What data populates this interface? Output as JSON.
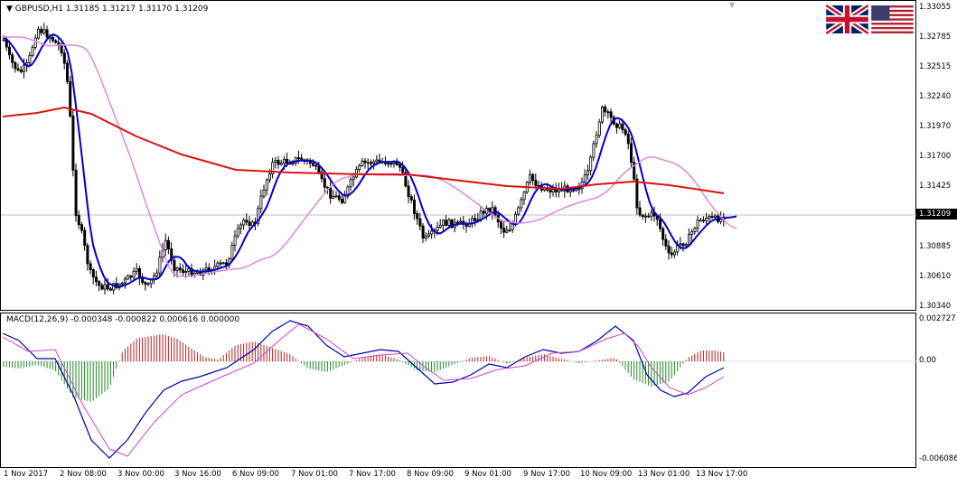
{
  "chart_title": "GBPUSD,H1",
  "ohlc": {
    "open": "1.31185",
    "high": "1.31217",
    "low": "1.31170",
    "close": "1.31209"
  },
  "current_price": "1.31209",
  "price_axis": [
    "1.33055",
    "1.32785",
    "1.32515",
    "1.32240",
    "1.31970",
    "1.31700",
    "1.31425",
    "1.31155",
    "1.30885",
    "1.30610",
    "1.30340"
  ],
  "macd_caption": "MACD(12,26,9) -0.000348 -0.000822 0.000616 0.000000",
  "macd_axis": [
    "0.002727",
    "0.00",
    "-0.006086"
  ],
  "time_axis": [
    "1 Nov 2017",
    "2 Nov 08:00",
    "3 Nov 00:00",
    "3 Nov 16:00",
    "6 Nov 09:00",
    "7 Nov 01:00",
    "7 Nov 17:00",
    "8 Nov 09:00",
    "9 Nov 01:00",
    "9 Nov 17:00",
    "10 Nov 09:00",
    "13 Nov 01:00",
    "13 Nov 17:00"
  ],
  "colors": {
    "candle": "#000000",
    "ma_fast": "#0000cc",
    "ma_slow": "#dd88dd",
    "ma_long": "#dd1111",
    "macd_pos": "#b22222",
    "macd_neg": "#228b22",
    "macd_line": "#0000aa",
    "signal_line": "#cc44cc"
  },
  "flags": [
    "uk-flag-icon",
    "us-flag-icon"
  ],
  "chart_data": {
    "type": "line",
    "x": [
      "1 Nov 2017",
      "2 Nov 08:00",
      "3 Nov 00:00",
      "3 Nov 16:00",
      "6 Nov 09:00",
      "7 Nov 01:00",
      "7 Nov 17:00",
      "8 Nov 09:00",
      "9 Nov 01:00",
      "9 Nov 17:00",
      "10 Nov 09:00",
      "13 Nov 01:00",
      "13 Nov 17:00"
    ],
    "series": [
      {
        "values": [
          1.328,
          1.322,
          1.307,
          1.3075,
          1.314,
          1.317,
          1.3165,
          1.311,
          1.3115,
          1.3145,
          1.3225,
          1.309,
          1.3121
        ]
      }
    ],
    "ylim": [
      1.3034,
      1.33055
    ]
  }
}
